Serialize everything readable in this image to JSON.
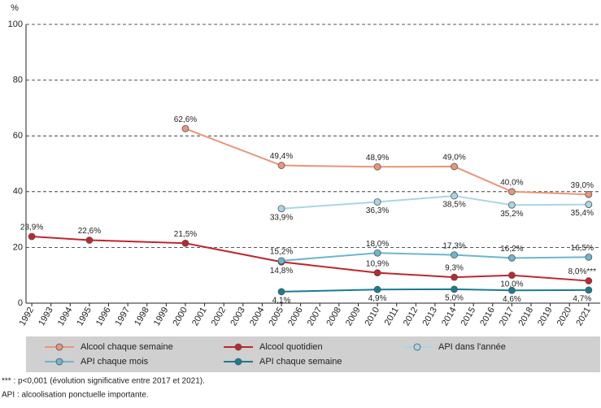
{
  "chart_data": {
    "type": "line",
    "y_unit": "%",
    "xlim": [
      1991.7,
      2021.6
    ],
    "xticks": [
      1992,
      1993,
      1994,
      1995,
      1996,
      1997,
      1998,
      1999,
      2000,
      2001,
      2002,
      2003,
      2004,
      2005,
      2006,
      2007,
      2008,
      2009,
      2010,
      2011,
      2012,
      2013,
      2014,
      2015,
      2016,
      2017,
      2018,
      2019,
      2020,
      2021
    ],
    "ylim": [
      0,
      100
    ],
    "yticks": [
      0,
      20,
      40,
      60,
      80,
      100
    ],
    "grid": true,
    "legend": "bottom",
    "series": [
      {
        "name": "Alcool chaque semaine",
        "color": "#e8967a",
        "x": [
          2000,
          2005,
          2010,
          2014,
          2017,
          2021
        ],
        "values": [
          62.6,
          49.4,
          48.9,
          49.0,
          40.0,
          39.0
        ],
        "value_labels": [
          "62,6%",
          "49,4%",
          "48,9%",
          "49,0%",
          "40,0%",
          "39,0%"
        ]
      },
      {
        "name": "Alcool quotidien",
        "color": "#c0262d",
        "x": [
          1992,
          1995,
          2000,
          2005,
          2010,
          2014,
          2017,
          2021
        ],
        "values": [
          23.9,
          22.6,
          21.5,
          14.8,
          10.9,
          9.3,
          10.0,
          8.0
        ],
        "value_labels": [
          "23,9%",
          "22,6%",
          "21,5%",
          "14,8%",
          "10,9%",
          "9,3%",
          "10,0%",
          "8,0%***"
        ]
      },
      {
        "name": "API dans l'année",
        "color": "#a9d6e5",
        "x": [
          2005,
          2010,
          2014,
          2017,
          2021
        ],
        "values": [
          33.9,
          36.3,
          38.5,
          35.2,
          35.4
        ],
        "value_labels": [
          "33,9%",
          "36,3%",
          "38,5%",
          "35,2%",
          "35,4%"
        ]
      },
      {
        "name": "API chaque mois",
        "color": "#6cb6cf",
        "x": [
          2005,
          2010,
          2014,
          2017,
          2021
        ],
        "values": [
          15.2,
          18.0,
          17.3,
          16.2,
          16.5
        ],
        "value_labels": [
          "15,2%",
          "18,0%",
          "17,3%",
          "16,2%",
          "16,5%"
        ]
      },
      {
        "name": "API chaque semaine",
        "color": "#1a7c92",
        "x": [
          2005,
          2010,
          2014,
          2017,
          2021
        ],
        "values": [
          4.1,
          4.9,
          5.0,
          4.6,
          4.7
        ],
        "value_labels": [
          "4,1%",
          "4,9%",
          "5,0%",
          "4,6%",
          "4,7%"
        ]
      }
    ]
  },
  "footnotes": [
    "*** : p<0,001 (évolution significative entre 2017 et 2021).",
    "API : alcoolisation ponctuelle importante."
  ]
}
